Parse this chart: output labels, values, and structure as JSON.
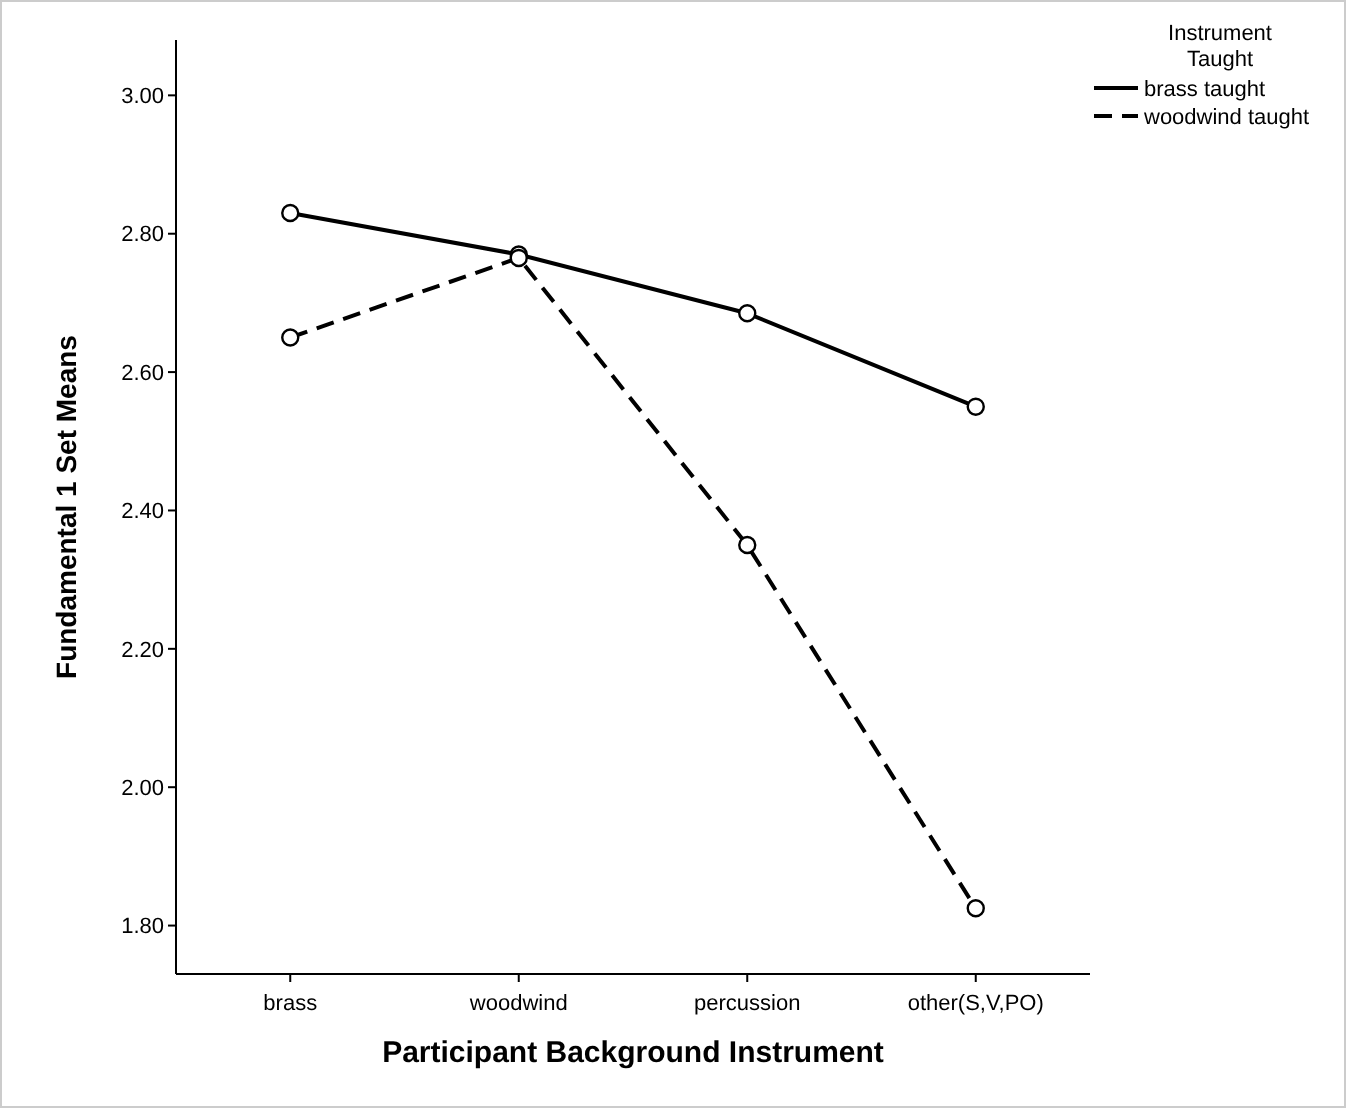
{
  "chart_data": {
    "type": "line",
    "xlabel": "Participant Background Instrument",
    "ylabel": "Fundamental 1 Set Means",
    "legend_title": "Instrument Taught",
    "categories": [
      "brass",
      "woodwind",
      "percussion",
      "other(S,V,PO)"
    ],
    "series": [
      {
        "name": "brass taught",
        "color": "#000000",
        "line_style": "solid",
        "values": [
          2.83,
          2.77,
          2.685,
          2.55
        ]
      },
      {
        "name": "woodwind taught",
        "color": "#000000",
        "line_style": "dashed",
        "values": [
          2.65,
          2.765,
          2.35,
          1.825
        ]
      }
    ],
    "ylim": [
      1.73,
      3.08
    ],
    "yticks": [
      {
        "value": 1.8,
        "label": "1.80"
      },
      {
        "value": 2.0,
        "label": "2.00"
      },
      {
        "value": 2.2,
        "label": "2.20"
      },
      {
        "value": 2.4,
        "label": "2.40"
      },
      {
        "value": 2.6,
        "label": "2.60"
      },
      {
        "value": 2.8,
        "label": "2.80"
      },
      {
        "value": 3.0,
        "label": "3.00"
      }
    ],
    "marker": "circle",
    "legend": "top right",
    "grid": false
  }
}
